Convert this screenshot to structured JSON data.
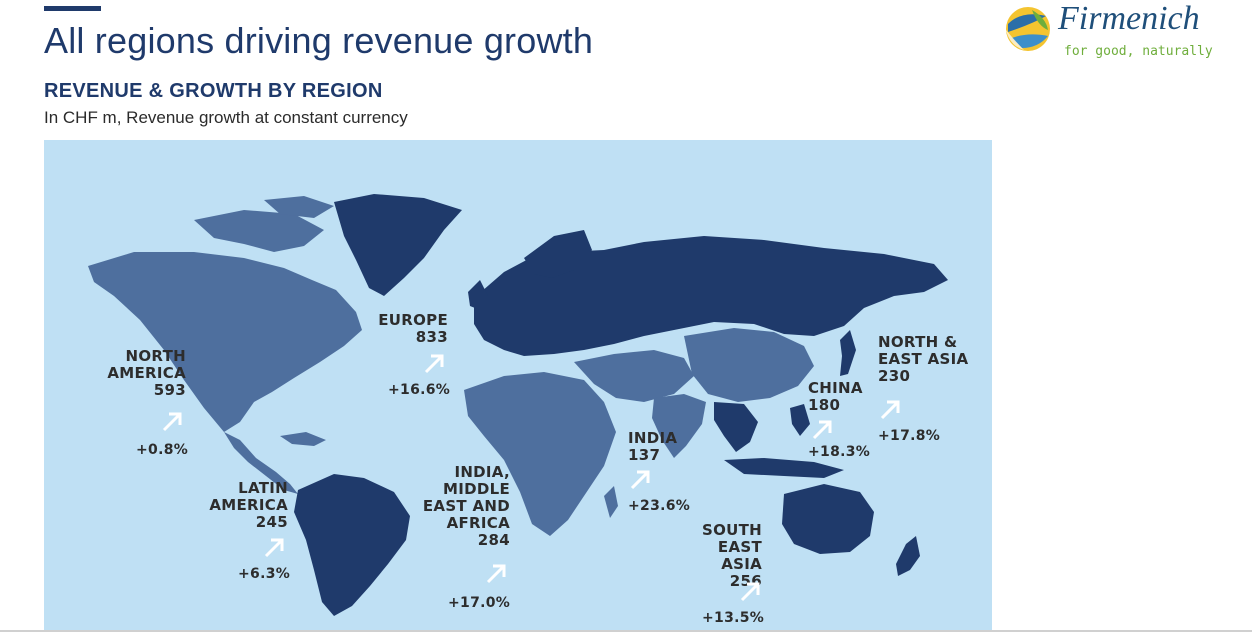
{
  "header": {
    "title": "All regions driving revenue growth",
    "subtitle": "REVENUE & GROWTH BY REGION",
    "caption": "In CHF m, Revenue growth at constant currency"
  },
  "logo": {
    "wordmark": "Firmenich",
    "tagline": "for good, naturally"
  },
  "colors": {
    "ocean": "#bfe0f4",
    "dark_region": "#1f3a6b",
    "mid_region": "#4e6f9e",
    "title": "#1f3a6b",
    "logo_green": "#6fae3c"
  },
  "regions": [
    {
      "id": "north-america",
      "name_lines": [
        "NORTH",
        "AMERICA"
      ],
      "revenue": "593",
      "growth": "+0.8%"
    },
    {
      "id": "latin-america",
      "name_lines": [
        "LATIN",
        "AMERICA"
      ],
      "revenue": "245",
      "growth": "+6.3%"
    },
    {
      "id": "europe",
      "name_lines": [
        "EUROPE"
      ],
      "revenue": "833",
      "growth": "+16.6%"
    },
    {
      "id": "imea",
      "name_lines": [
        "INDIA,",
        "MIDDLE",
        "EAST AND",
        "AFRICA"
      ],
      "revenue": "284",
      "growth": "+17.0%"
    },
    {
      "id": "india",
      "name_lines": [
        "INDIA"
      ],
      "revenue": "137",
      "growth": "+23.6%"
    },
    {
      "id": "china",
      "name_lines": [
        "CHINA"
      ],
      "revenue": "180",
      "growth": "+18.3%"
    },
    {
      "id": "north-east-asia",
      "name_lines": [
        "NORTH &",
        "EAST ASIA"
      ],
      "revenue": "230",
      "growth": "+17.8%"
    },
    {
      "id": "south-east-asia",
      "name_lines": [
        "SOUTH",
        "EAST ASIA"
      ],
      "revenue": "256",
      "growth": "+13.5%"
    }
  ]
}
